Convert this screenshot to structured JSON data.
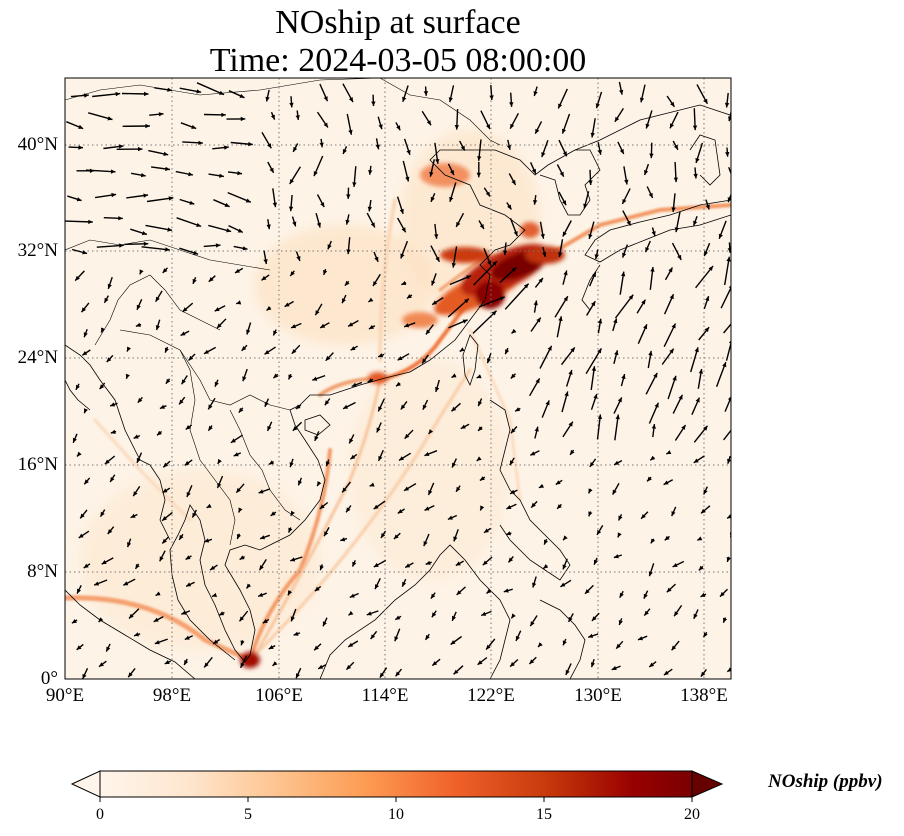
{
  "title": {
    "line1": "NOship at surface",
    "line2": "Time: 2024-03-05 08:00:00"
  },
  "map": {
    "lon_range": [
      90,
      140
    ],
    "lat_range": [
      0,
      45
    ],
    "lon_ticks": [
      {
        "value": 90,
        "label": "90°E"
      },
      {
        "value": 98,
        "label": "98°E"
      },
      {
        "value": 106,
        "label": "106°E"
      },
      {
        "value": 114,
        "label": "114°E"
      },
      {
        "value": 122,
        "label": "122°E"
      },
      {
        "value": 130,
        "label": "130°E"
      },
      {
        "value": 138,
        "label": "138°E"
      }
    ],
    "lat_ticks": [
      {
        "value": 0,
        "label": "0°"
      },
      {
        "value": 8,
        "label": "8°N"
      },
      {
        "value": 16,
        "label": "16°N"
      },
      {
        "value": 24,
        "label": "24°N"
      },
      {
        "value": 32,
        "label": "32°N"
      },
      {
        "value": 40,
        "label": "40°N"
      }
    ],
    "gridlines": true,
    "colors": {
      "background": "#fdf3e6",
      "coast": "#000000",
      "grid": "#777777",
      "arrow": "#000000"
    }
  },
  "colorbar": {
    "label": "NOship (ppbv)",
    "min": 0,
    "max": 20,
    "ticks": [
      {
        "value": 0,
        "label": "0"
      },
      {
        "value": 5,
        "label": "5"
      },
      {
        "value": 10,
        "label": "10"
      },
      {
        "value": 15,
        "label": "15"
      },
      {
        "value": 20,
        "label": "20"
      }
    ],
    "extend": "both",
    "colormap": [
      "#fff5eb",
      "#fdd9b1",
      "#fdab67",
      "#f26b2a",
      "#c93b0c",
      "#8b0000",
      "#670000"
    ]
  }
}
